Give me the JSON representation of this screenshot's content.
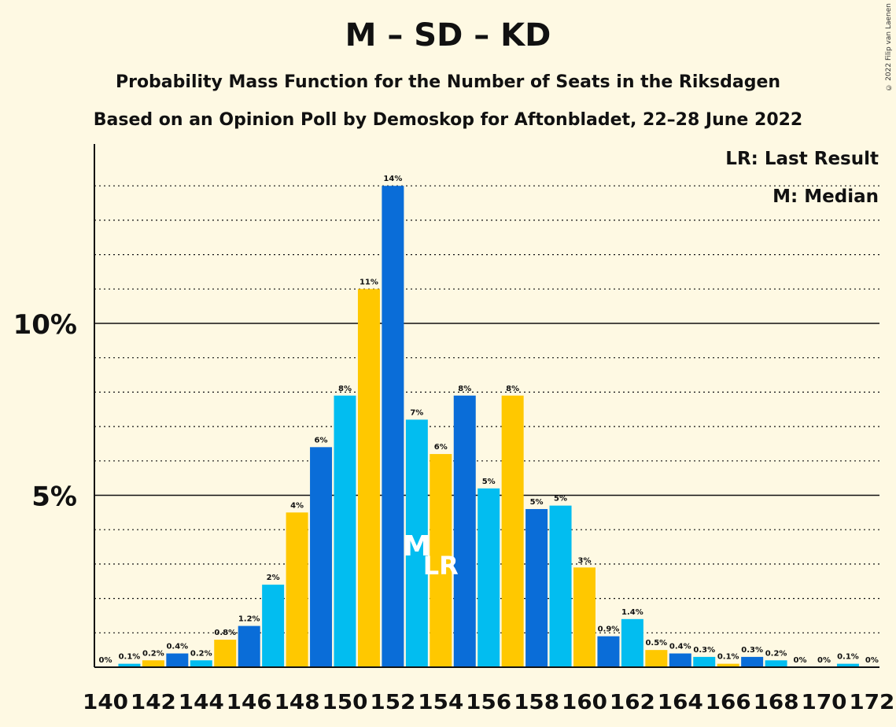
{
  "title": "M – SD – KD",
  "subtitle": "Probability Mass Function for the Number of Seats in the Riksdagen",
  "subtitle2": "Based on an Opinion Poll by Demoskop for Aftonbladet, 22–28 June 2022",
  "copyright": "© 2022 Filip van Laenen",
  "legend": {
    "last_result": "LR: Last Result",
    "median": "M: Median"
  },
  "colors": {
    "dark_blue": "#0a6dd8",
    "light_blue": "#02bdf0",
    "yellow": "#ffc800",
    "background": "#fef9e3"
  },
  "chart_data": {
    "type": "bar",
    "x": [
      140,
      141,
      142,
      143,
      144,
      145,
      146,
      147,
      148,
      149,
      150,
      151,
      152,
      153,
      154,
      155,
      156,
      157,
      158,
      159,
      160,
      161,
      162,
      163,
      164,
      165,
      166,
      167,
      168,
      169,
      170,
      171,
      172
    ],
    "values": [
      0.0,
      0.1,
      0.2,
      0.4,
      0.2,
      0.8,
      1.2,
      2.4,
      4.5,
      6.4,
      7.9,
      11.0,
      14.0,
      7.2,
      6.2,
      7.9,
      5.2,
      7.9,
      4.6,
      4.7,
      2.9,
      0.9,
      1.4,
      0.5,
      0.4,
      0.3,
      0.1,
      0.3,
      0.2,
      0.0,
      0.0,
      0.1,
      0.0
    ],
    "labels": [
      "0%",
      "0.1%",
      "0.2%",
      "0.4%",
      "0.2%",
      "0.8%",
      "1.2%",
      "2%",
      "4%",
      "6%",
      "8%",
      "11%",
      "14%",
      "7%",
      "6%",
      "8%",
      "5%",
      "8%",
      "5%",
      "5%",
      "3%",
      "0.9%",
      "1.4%",
      "0.5%",
      "0.4%",
      "0.3%",
      "0.1%",
      "0.3%",
      "0.2%",
      "0%",
      "0%",
      "0.1%",
      "0%"
    ],
    "x_tick_labels": [
      "140",
      "142",
      "144",
      "146",
      "148",
      "150",
      "152",
      "154",
      "156",
      "158",
      "160",
      "162",
      "164",
      "166",
      "168",
      "170",
      "172"
    ],
    "y_tick_labels": [
      "5%",
      "10%"
    ],
    "y_ticks": [
      5,
      10
    ],
    "ylim": [
      0,
      15.2
    ],
    "median": 153,
    "median_label": "M",
    "last_result": 154,
    "last_result_label": "LR",
    "grid": "dotted every 1%, solid at 5% and 10%"
  }
}
